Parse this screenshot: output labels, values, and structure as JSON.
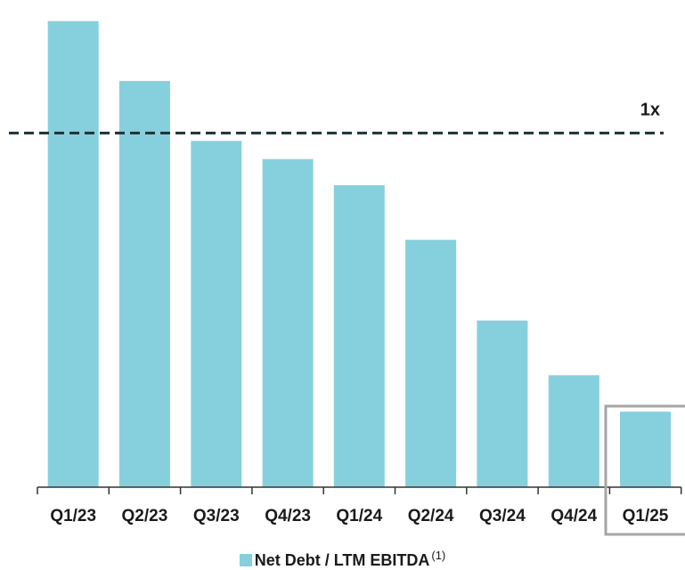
{
  "chart_data": {
    "type": "bar",
    "categories": [
      "Q1/23",
      "Q2/23",
      "Q3/23",
      "Q4/23",
      "Q1/24",
      "Q2/24",
      "Q3/24",
      "Q4/24",
      "Q1/25"
    ],
    "series": [
      {
        "name": "Net Debt / LTM EBITDA",
        "values": [
          1.43,
          1.2,
          0.97,
          0.9,
          0.8,
          0.59,
          0.28,
          0.07,
          -0.07
        ]
      }
    ],
    "ylim": [
      -0.36,
      1.47
    ],
    "grid": false,
    "reference_line": {
      "value": 1.0,
      "label": "1x",
      "style": "dashed"
    },
    "highlighted_category": "Q1/25",
    "legend": {
      "position": "bottom",
      "label": "Net Debt / LTM EBITDA",
      "superscript": "(1)"
    },
    "colors": {
      "bar": "#86d0dd",
      "reference_line": "#1d3138",
      "axis": "#333333",
      "highlight_box": "#a6a6a6"
    }
  }
}
